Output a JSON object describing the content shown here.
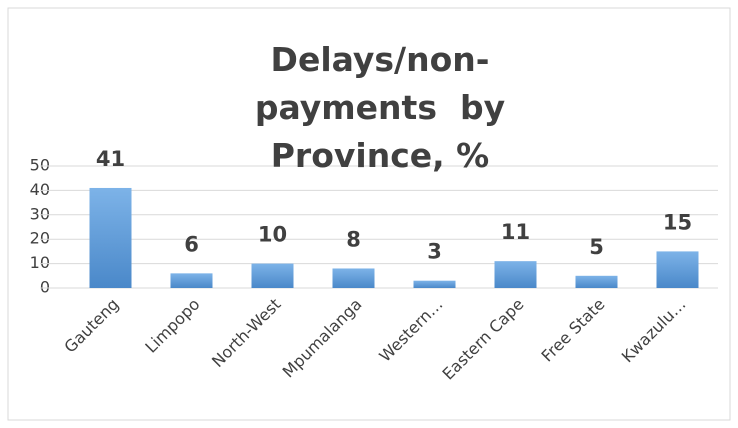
{
  "chart_data": {
    "type": "bar",
    "title": "Delays/non-payments  by Province, %",
    "categories": [
      "Gauteng",
      "Limpopo",
      "North-West",
      "Mpumalanga",
      "Western…",
      "Eastern Cape",
      "Free State",
      "Kwazulu…"
    ],
    "values": [
      41,
      6,
      10,
      8,
      3,
      11,
      5,
      15
    ],
    "color": "#5b9bd5",
    "ylim": [
      0,
      50
    ],
    "yticks": [
      0,
      10,
      20,
      30,
      40,
      50
    ],
    "grid": true
  }
}
